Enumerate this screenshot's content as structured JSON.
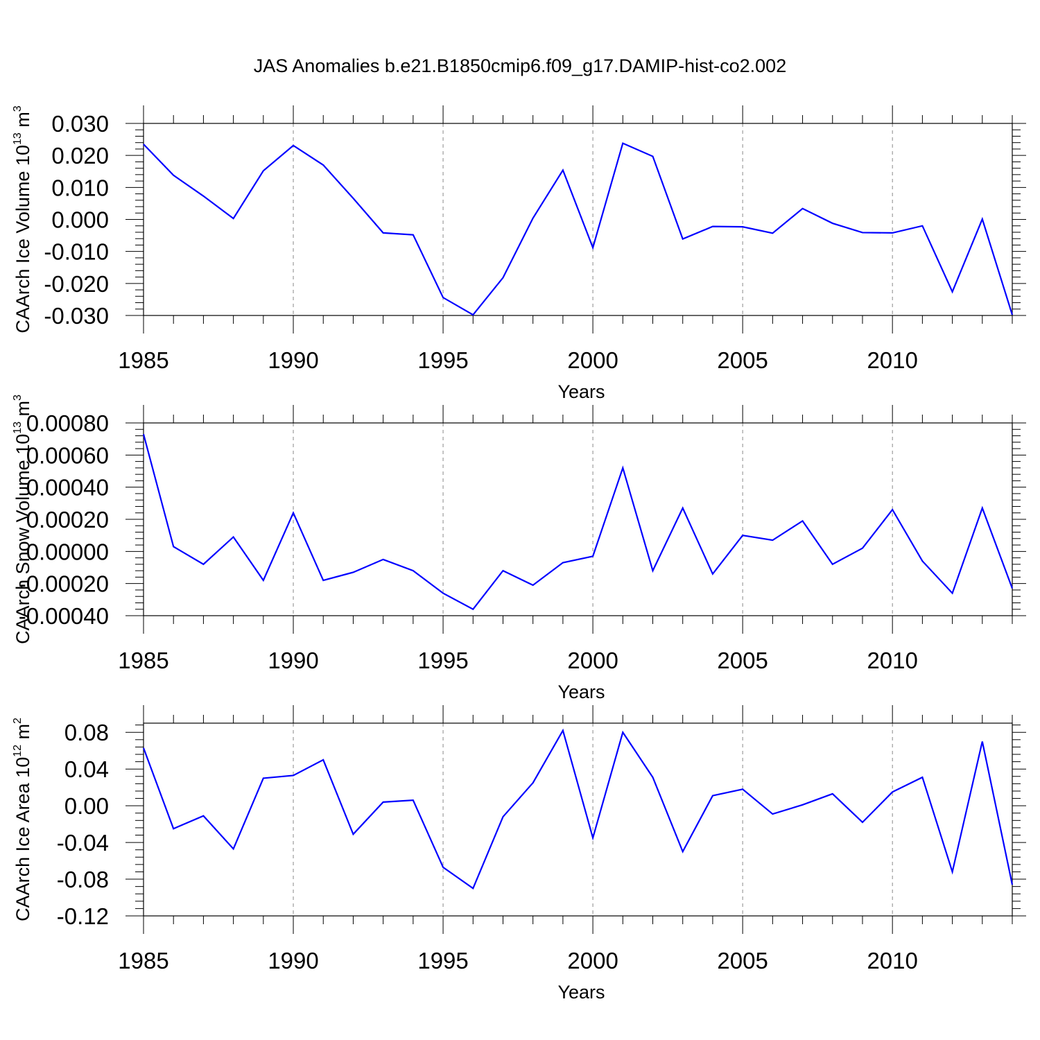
{
  "title": "JAS Anomalies b.e21.B1850cmip6.f09_g17.DAMIP-hist-co2.002",
  "colors": {
    "line": "#0000ff",
    "axis": "#000000",
    "grid": "#888888"
  },
  "chart_data": [
    {
      "type": "line",
      "xlabel": "Years",
      "ylabel": {
        "base": "CAArch Ice Volume 10",
        "exp": "13",
        "unit": " m",
        "unit_exp": "3"
      },
      "xlim": [
        1985,
        2014
      ],
      "ylim": [
        -0.03,
        0.03
      ],
      "yticks": [
        -0.03,
        -0.02,
        -0.01,
        0.0,
        0.01,
        0.02,
        0.03
      ],
      "ytick_labels": [
        "-0.030",
        "-0.020",
        "-0.010",
        "0.000",
        "0.010",
        "0.020",
        "0.030"
      ],
      "xticks": [
        1985,
        1990,
        1995,
        2000,
        2005,
        2010
      ],
      "xtick_labels": [
        "1985",
        "1990",
        "1995",
        "2000",
        "2005",
        "2010"
      ],
      "grid": "vertical dashed at major x ticks",
      "x": [
        1985,
        1986,
        1987,
        1988,
        1989,
        1990,
        1991,
        1992,
        1993,
        1994,
        1995,
        1996,
        1997,
        1998,
        1999,
        2000,
        2001,
        2002,
        2003,
        2004,
        2005,
        2006,
        2007,
        2008,
        2009,
        2010,
        2011,
        2012,
        2013,
        2014
      ],
      "series": [
        {
          "name": "CAArch Ice Volume",
          "values": [
            0.0235,
            0.0138,
            0.0073,
            0.0003,
            0.0152,
            0.0231,
            0.017,
            0.0066,
            -0.0042,
            -0.0048,
            -0.0244,
            -0.0298,
            -0.0182,
            0.0004,
            0.0154,
            -0.0088,
            0.0238,
            0.0197,
            -0.0061,
            -0.0022,
            -0.0023,
            -0.0043,
            0.0034,
            -0.0012,
            -0.0041,
            -0.0042,
            -0.002,
            -0.0226,
            0.0001,
            -0.0298
          ]
        }
      ]
    },
    {
      "type": "line",
      "xlabel": "Years",
      "ylabel": {
        "base": "CAArch Snow Volume 10",
        "exp": "13",
        "unit": " m",
        "unit_exp": "3"
      },
      "xlim": [
        1985,
        2014
      ],
      "ylim": [
        -0.0004,
        0.0008
      ],
      "yticks": [
        -0.0004,
        -0.0002,
        0.0,
        0.0002,
        0.0004,
        0.0006,
        0.0008
      ],
      "ytick_labels": [
        "-0.00040",
        "-0.00020",
        "0.00000",
        "0.00020",
        "0.00040",
        "0.00060",
        "0.00080"
      ],
      "xticks": [
        1985,
        1990,
        1995,
        2000,
        2005,
        2010
      ],
      "xtick_labels": [
        "1985",
        "1990",
        "1995",
        "2000",
        "2005",
        "2010"
      ],
      "grid": "vertical dashed at major x ticks",
      "x": [
        1985,
        1986,
        1987,
        1988,
        1989,
        1990,
        1991,
        1992,
        1993,
        1994,
        1995,
        1996,
        1997,
        1998,
        1999,
        2000,
        2001,
        2002,
        2003,
        2004,
        2005,
        2006,
        2007,
        2008,
        2009,
        2010,
        2011,
        2012,
        2013,
        2014
      ],
      "series": [
        {
          "name": "CAArch Snow Volume",
          "values": [
            0.00073,
            3e-05,
            -8e-05,
            9e-05,
            -0.00018,
            0.00024,
            -0.00018,
            -0.00013,
            -5e-05,
            -0.00012,
            -0.00026,
            -0.00036,
            -0.00012,
            -0.00021,
            -7e-05,
            -3e-05,
            0.00052,
            -0.00012,
            0.00027,
            -0.00014,
            0.0001,
            7e-05,
            0.00019,
            -8e-05,
            2e-05,
            0.00026,
            -6e-05,
            -0.00026,
            0.00027,
            -0.00023
          ]
        }
      ]
    },
    {
      "type": "line",
      "xlabel": "Years",
      "ylabel": {
        "base": "CAArch Ice Area 10",
        "exp": "12",
        "unit": " m",
        "unit_exp": "2"
      },
      "xlim": [
        1985,
        2014
      ],
      "ylim": [
        -0.12,
        0.09
      ],
      "yticks": [
        -0.12,
        -0.08,
        -0.04,
        0.0,
        0.04,
        0.08
      ],
      "ytick_labels": [
        "-0.12",
        "-0.08",
        "-0.04",
        "0.00",
        "0.04",
        "0.08"
      ],
      "xticks": [
        1985,
        1990,
        1995,
        2000,
        2005,
        2010
      ],
      "xtick_labels": [
        "1985",
        "1990",
        "1995",
        "2000",
        "2005",
        "2010"
      ],
      "grid": "vertical dashed at major x ticks",
      "x": [
        1985,
        1986,
        1987,
        1988,
        1989,
        1990,
        1991,
        1992,
        1993,
        1994,
        1995,
        1996,
        1997,
        1998,
        1999,
        2000,
        2001,
        2002,
        2003,
        2004,
        2005,
        2006,
        2007,
        2008,
        2009,
        2010,
        2011,
        2012,
        2013,
        2014
      ],
      "series": [
        {
          "name": "CAArch Ice Area",
          "values": [
            0.063,
            -0.025,
            -0.011,
            -0.047,
            0.03,
            0.033,
            0.05,
            -0.031,
            0.004,
            0.006,
            -0.067,
            -0.09,
            -0.012,
            0.025,
            0.082,
            -0.035,
            0.08,
            0.031,
            -0.05,
            0.011,
            0.018,
            -0.009,
            0.001,
            0.013,
            -0.018,
            0.015,
            0.031,
            -0.072,
            0.07,
            -0.086
          ]
        }
      ]
    }
  ]
}
